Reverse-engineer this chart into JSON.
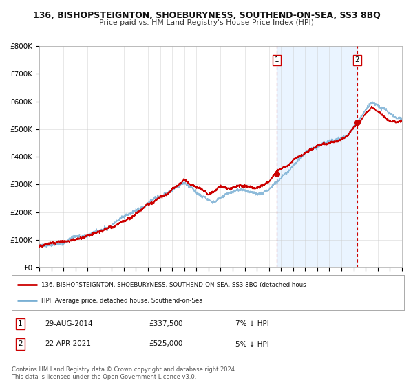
{
  "title": "136, BISHOPSTEIGNTON, SHOEBURYNESS, SOUTHEND-ON-SEA, SS3 8BQ",
  "subtitle": "Price paid vs. HM Land Registry's House Price Index (HPI)",
  "xlim": [
    1995,
    2025
  ],
  "ylim": [
    0,
    800000
  ],
  "yticks": [
    0,
    100000,
    200000,
    300000,
    400000,
    500000,
    600000,
    700000,
    800000
  ],
  "ytick_labels": [
    "£0",
    "£100K",
    "£200K",
    "£300K",
    "£400K",
    "£500K",
    "£600K",
    "£700K",
    "£800K"
  ],
  "red_line_color": "#cc0000",
  "blue_line_color": "#7ab0d4",
  "shade_color": "#ddeeff",
  "point1_x": 2014.66,
  "point1_y": 337500,
  "point2_x": 2021.31,
  "point2_y": 525000,
  "legend_line1": "136, BISHOPSTEIGNTON, SHOEBURYNESS, SOUTHEND-ON-SEA, SS3 8BQ (detached hous",
  "legend_line2": "HPI: Average price, detached house, Southend-on-Sea",
  "footer1": "Contains HM Land Registry data © Crown copyright and database right 2024.",
  "footer2": "This data is licensed under the Open Government Licence v3.0.",
  "background_color": "#ffffff",
  "grid_color": "#cccccc"
}
